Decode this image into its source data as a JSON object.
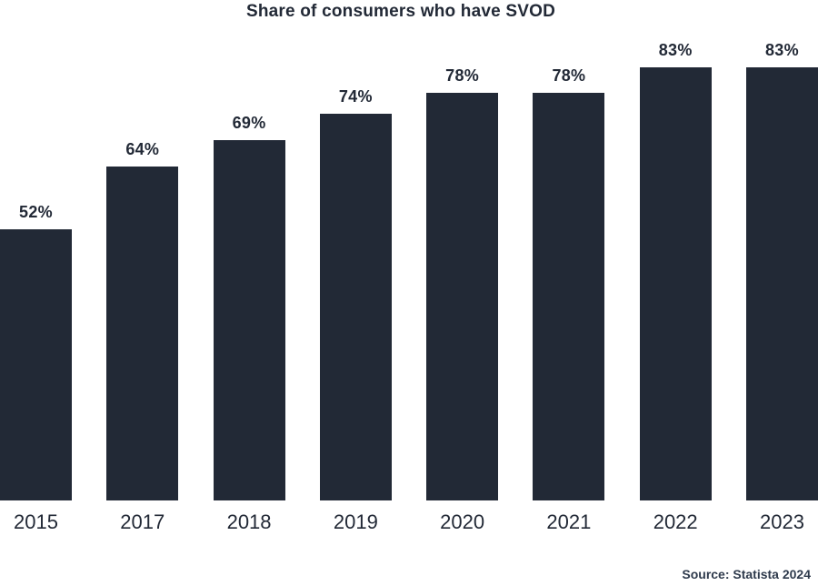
{
  "chart": {
    "title": "Share of consumers who have SVOD",
    "source": "Source: Statista 2024"
  },
  "chart_data": {
    "type": "bar",
    "title": "Share of consumers who have SVOD",
    "categories": [
      "2015",
      "2017",
      "2018",
      "2019",
      "2020",
      "2021",
      "2022",
      "2023"
    ],
    "values": [
      52,
      64,
      69,
      74,
      78,
      78,
      83,
      83
    ],
    "value_labels": [
      "52%",
      "64%",
      "69%",
      "74%",
      "78%",
      "78%",
      "83%",
      "83%"
    ],
    "xlabel": "",
    "ylabel": "",
    "ylim": [
      0,
      96
    ],
    "grid": false,
    "legend": false,
    "axes_visible": false,
    "bar_color": "#222936",
    "text_color": "#222936",
    "source_annotation": "Source: Statista 2024",
    "source_position": "bottom-right"
  },
  "colors": {
    "background": "#ffffff",
    "bar": "#222936",
    "title_text": "#222936",
    "axis_label_text": "#222936",
    "source_text": "#2e3a4c"
  }
}
